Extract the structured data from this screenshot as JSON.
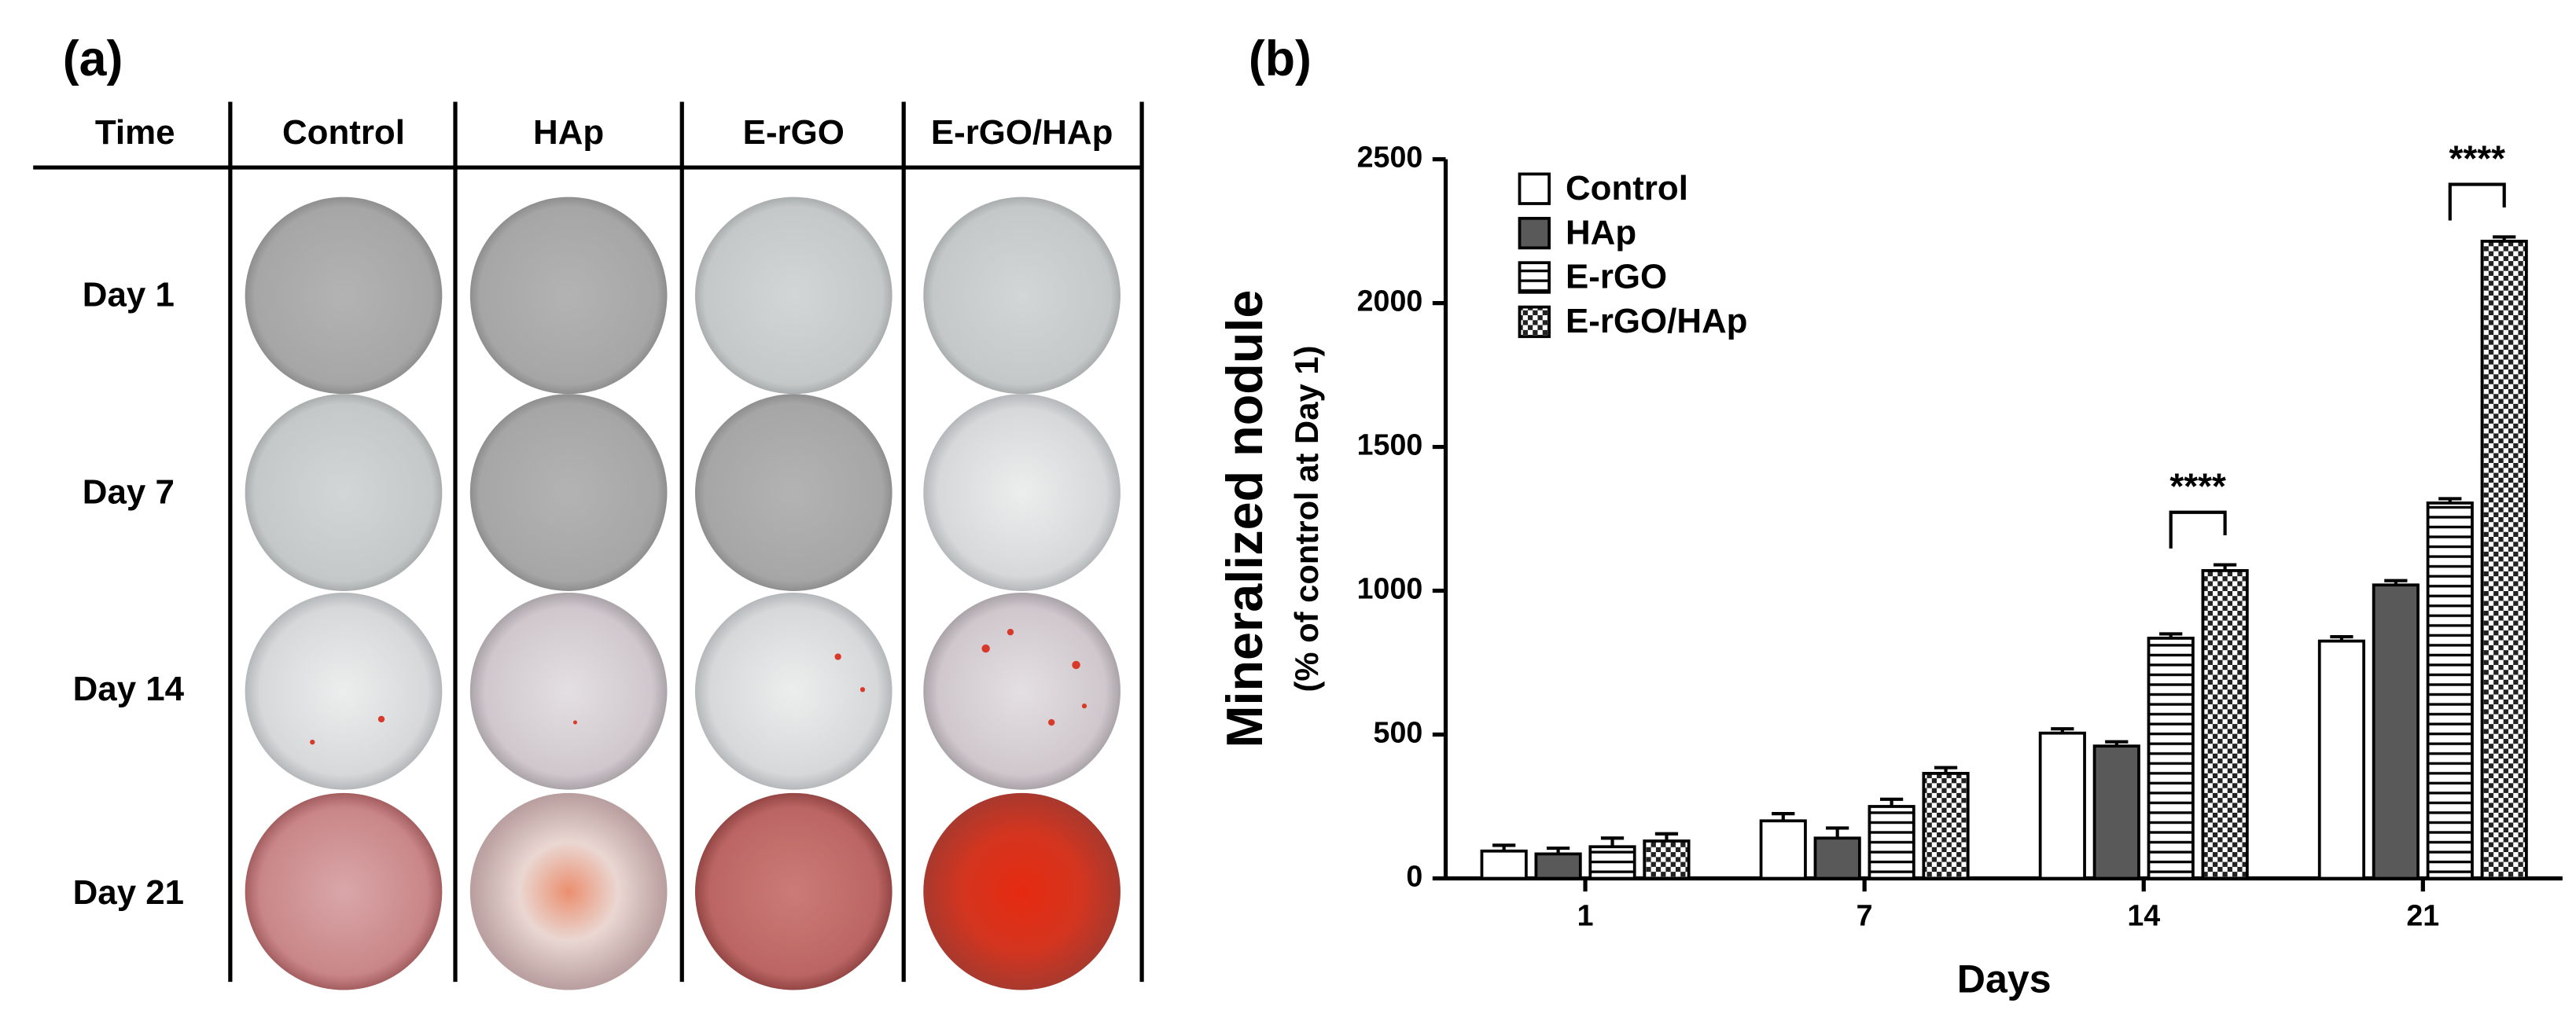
{
  "panel_a": {
    "label": "(a)",
    "header": [
      "Time",
      "Control",
      "HAp",
      "E-rGO",
      "E-rGO/HAp"
    ],
    "rows": [
      "Day 1",
      "Day 7",
      "Day 14",
      "Day 21"
    ]
  },
  "chart_data": {
    "type": "bar",
    "panel_label": "(b)",
    "y_label": "Mineralized nodule",
    "y_sublabel": "(% of control at Day 1)",
    "x_label": "Days",
    "categories": [
      "1",
      "7",
      "14",
      "21"
    ],
    "series": [
      {
        "name": "Control",
        "color": "#ffffff",
        "pattern": "solid",
        "values": [
          95,
          200,
          505,
          825
        ],
        "errors": [
          20,
          25,
          15,
          15
        ]
      },
      {
        "name": "HAp",
        "color": "#595959",
        "pattern": "solid",
        "values": [
          85,
          140,
          460,
          1020
        ],
        "errors": [
          20,
          35,
          15,
          15
        ]
      },
      {
        "name": "E-rGO",
        "color": "#ffffff",
        "pattern": "stripes",
        "values": [
          110,
          250,
          835,
          1305
        ],
        "errors": [
          30,
          25,
          15,
          15
        ]
      },
      {
        "name": "E-rGO/HAp",
        "color": "#ffffff",
        "pattern": "checker",
        "values": [
          130,
          365,
          1070,
          2215
        ],
        "errors": [
          25,
          20,
          20,
          15
        ]
      }
    ],
    "annotations": [
      {
        "text": "****",
        "x": "14",
        "series": [
          "E-rGO",
          "E-rGO/HAp"
        ]
      },
      {
        "text": "****",
        "x": "21",
        "series": [
          "E-rGO",
          "E-rGO/HAp"
        ]
      }
    ],
    "ylim": [
      0,
      2500
    ],
    "yticks": [
      0,
      500,
      1000,
      1500,
      2000,
      2500
    ],
    "legend": "upper left",
    "grid": false
  }
}
